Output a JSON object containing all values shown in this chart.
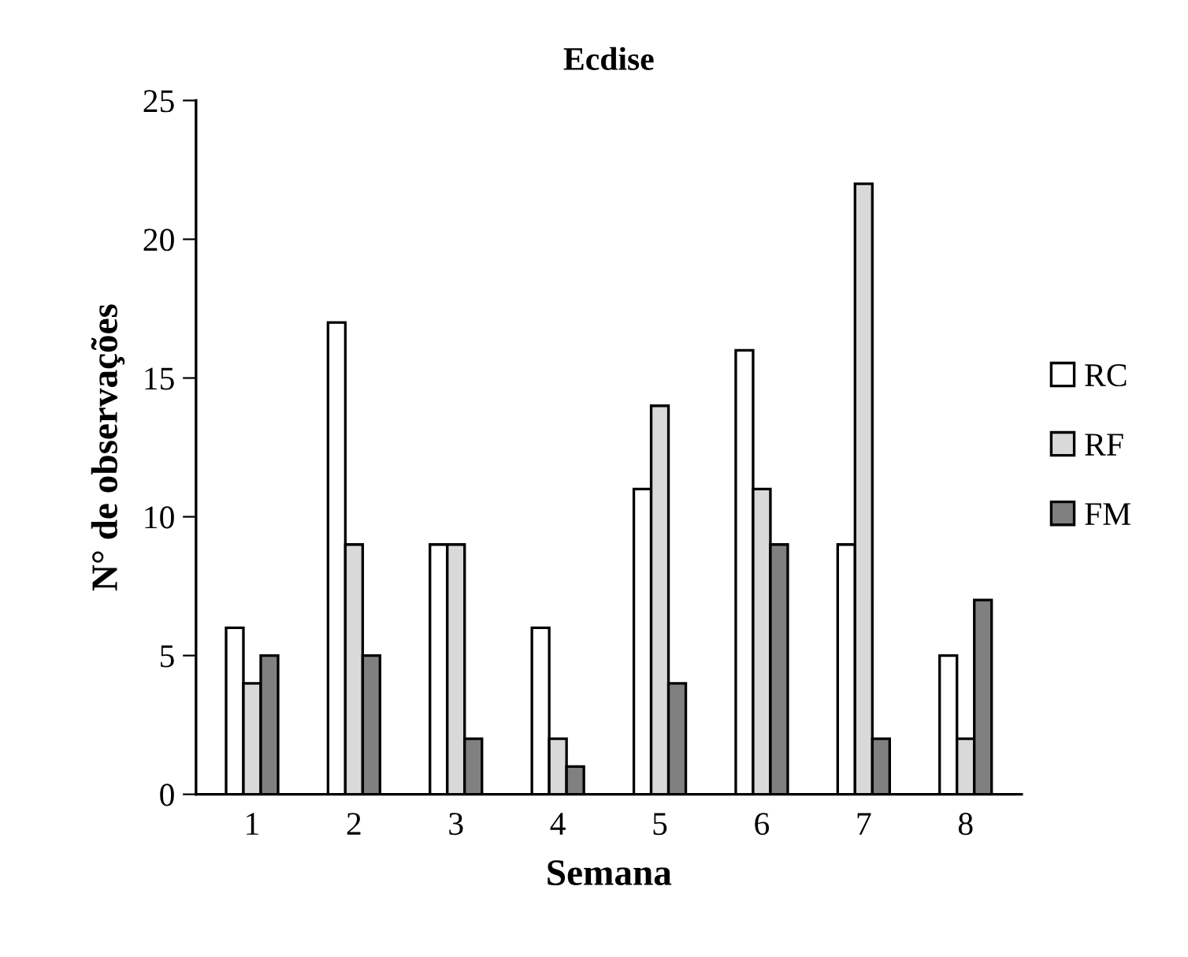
{
  "chart_data": {
    "type": "bar",
    "title": "Ecdise",
    "xlabel": "Semana",
    "ylabel": "N° de observações",
    "categories": [
      "1",
      "2",
      "3",
      "4",
      "5",
      "6",
      "7",
      "8"
    ],
    "series": [
      {
        "name": "RC",
        "color": "#ffffff",
        "values": [
          6,
          17,
          9,
          6,
          11,
          16,
          9,
          5
        ]
      },
      {
        "name": "RF",
        "color": "#d9d9d9",
        "values": [
          4,
          9,
          9,
          2,
          14,
          11,
          22,
          2
        ]
      },
      {
        "name": "FM",
        "color": "#808080",
        "values": [
          5,
          5,
          2,
          1,
          4,
          9,
          2,
          7
        ]
      }
    ],
    "ylim": [
      0,
      25
    ],
    "yticks": [
      0,
      5,
      10,
      15,
      20,
      25
    ],
    "grid": false,
    "legend": "right"
  }
}
